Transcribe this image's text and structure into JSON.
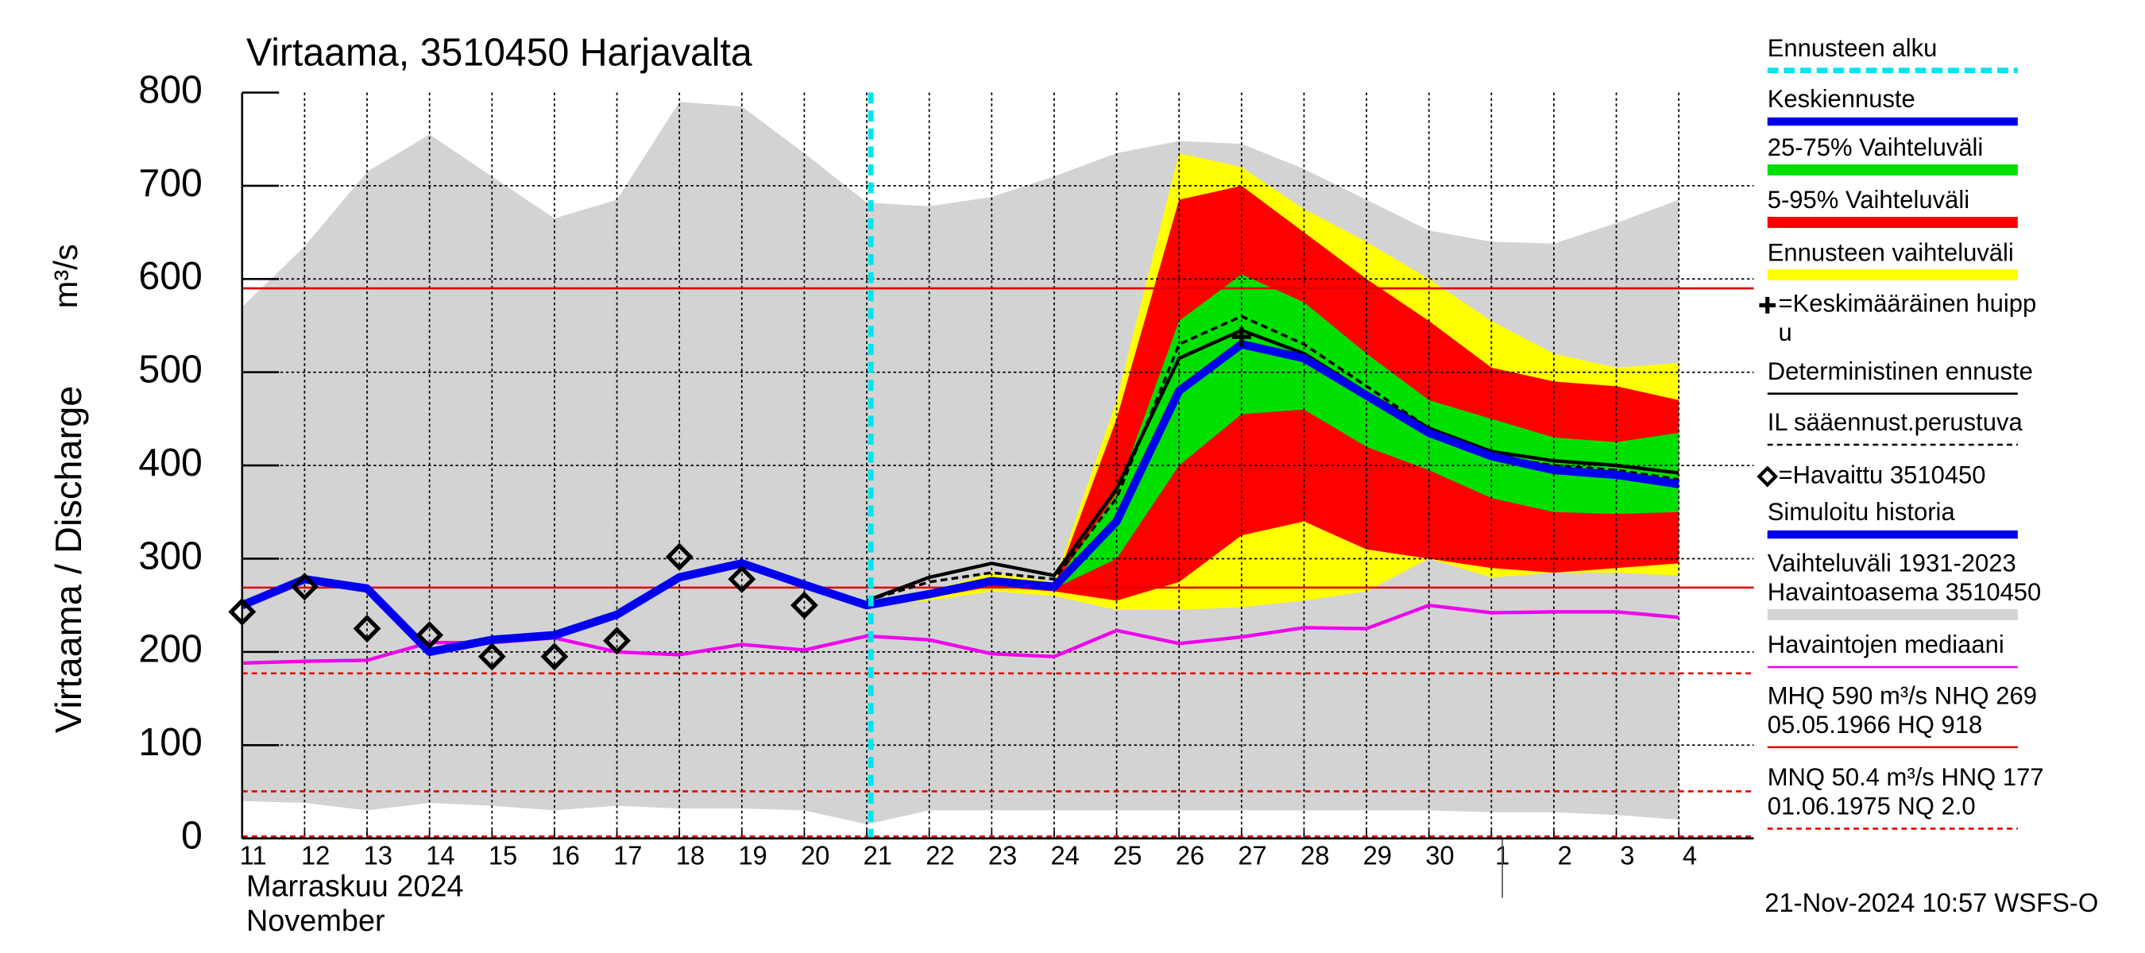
{
  "chart_data": {
    "type": "line",
    "title": "Virtaama, 3510450 Harjavalta",
    "ylabel": "Virtaama / Discharge",
    "yunit": "m³/s",
    "xlabel_lines": [
      "Marraskuu 2024",
      "November"
    ],
    "footer": "21-Nov-2024 10:57 WSFS-O",
    "categories": [
      "11",
      "12",
      "13",
      "14",
      "15",
      "16",
      "17",
      "18",
      "19",
      "20",
      "21",
      "22",
      "23",
      "24",
      "25",
      "26",
      "27",
      "28",
      "29",
      "30",
      "1",
      "2",
      "3",
      "4"
    ],
    "ylim": [
      0,
      800
    ],
    "yticks": [
      0,
      100,
      200,
      300,
      400,
      500,
      600,
      700,
      800
    ],
    "grid": true,
    "forecast_start_index": 10,
    "month_break_index": 20,
    "bands": [
      {
        "color": "#d3d3d3",
        "upper": [
          570,
          635,
          715,
          755,
          710,
          665,
          685,
          790,
          785,
          735,
          682,
          678,
          688,
          710,
          735,
          748,
          745,
          718,
          685,
          652,
          640,
          638,
          660,
          685
        ],
        "lower": [
          40,
          38,
          30,
          38,
          35,
          30,
          35,
          32,
          32,
          30,
          15,
          30,
          30,
          30,
          30,
          30,
          30,
          30,
          30,
          30,
          28,
          28,
          25,
          20
        ]
      },
      {
        "color": "#ffff00",
        "upper": [
          null,
          null,
          null,
          null,
          null,
          null,
          null,
          null,
          null,
          null,
          250,
          265,
          285,
          275,
          470,
          735,
          720,
          675,
          640,
          600,
          555,
          520,
          505,
          510
        ],
        "lower": [
          null,
          null,
          null,
          null,
          null,
          null,
          null,
          null,
          null,
          null,
          250,
          255,
          265,
          260,
          245,
          245,
          248,
          255,
          265,
          300,
          280,
          285,
          285,
          282
        ]
      },
      {
        "color": "#ff0000",
        "upper": [
          null,
          null,
          null,
          null,
          null,
          null,
          null,
          null,
          null,
          null,
          250,
          260,
          275,
          270,
          450,
          685,
          700,
          650,
          600,
          555,
          505,
          490,
          485,
          470
        ],
        "lower": [
          null,
          null,
          null,
          null,
          null,
          null,
          null,
          null,
          null,
          null,
          250,
          258,
          270,
          265,
          255,
          275,
          325,
          340,
          310,
          300,
          290,
          285,
          290,
          295
        ]
      },
      {
        "color": "#00e000",
        "upper": [
          null,
          null,
          null,
          null,
          null,
          null,
          null,
          null,
          null,
          null,
          250,
          262,
          278,
          272,
          370,
          555,
          605,
          575,
          520,
          470,
          450,
          430,
          425,
          435
        ],
        "lower": [
          null,
          null,
          null,
          null,
          null,
          null,
          null,
          null,
          null,
          null,
          250,
          260,
          273,
          268,
          300,
          400,
          455,
          460,
          420,
          395,
          365,
          350,
          348,
          350
        ]
      }
    ],
    "reference_lines": [
      {
        "value": 590,
        "color": "#e00000",
        "dash": false
      },
      {
        "value": 269,
        "color": "#e00000",
        "dash": false
      },
      {
        "value": 177,
        "color": "#e00000",
        "dash": true
      },
      {
        "value": 50.4,
        "color": "#e00000",
        "dash": true
      },
      {
        "value": 2.0,
        "color": "#e00000",
        "dash": true
      }
    ],
    "series": [
      {
        "color": "#ee00ee",
        "width": 2.5,
        "dash": false,
        "values": [
          188,
          190,
          191,
          210,
          210,
          215,
          200,
          197,
          208,
          202,
          217,
          213,
          198,
          195,
          223,
          209,
          216,
          226,
          225,
          250,
          242,
          243,
          243,
          237
        ]
      },
      {
        "color": "#000000",
        "width": 2.5,
        "dash": false,
        "values": [
          null,
          null,
          null,
          null,
          null,
          null,
          null,
          null,
          null,
          null,
          255,
          280,
          295,
          282,
          375,
          515,
          545,
          520,
          478,
          440,
          415,
          405,
          400,
          392
        ]
      },
      {
        "color": "#000000",
        "width": 2,
        "dash": true,
        "values": [
          null,
          null,
          null,
          null,
          null,
          null,
          null,
          null,
          null,
          null,
          255,
          275,
          285,
          278,
          365,
          530,
          560,
          530,
          485,
          440,
          410,
          400,
          395,
          385
        ]
      },
      {
        "color": "#0000ee",
        "width": 6,
        "dash": false,
        "values": [
          250,
          278,
          268,
          200,
          213,
          218,
          240,
          280,
          295,
          272,
          250,
          262,
          276,
          270,
          340,
          480,
          530,
          515,
          475,
          435,
          410,
          395,
          390,
          380
        ]
      }
    ],
    "observed": [
      243,
      270,
      225,
      218,
      195,
      195,
      212,
      302,
      278,
      250
    ],
    "mean_peak": {
      "index": 16,
      "value": 538
    },
    "legend": [
      {
        "label": [
          "Ennusteen alku"
        ],
        "color": "#00e5ee",
        "style": "dash"
      },
      {
        "label": [
          "Keskiennuste"
        ],
        "color": "#0000ee",
        "style": "line"
      },
      {
        "label": [
          "25-75% Vaihteluväli"
        ],
        "color": "#00e000",
        "style": "bar"
      },
      {
        "label": [
          "5-95% Vaihteluväli"
        ],
        "color": "#ff0000",
        "style": "bar"
      },
      {
        "label": [
          "Ennusteen vaihteluväli"
        ],
        "color": "#ffff00",
        "style": "bar"
      },
      {
        "label": [
          "=Keskimääräinen huipp",
          "u"
        ],
        "color": "#000000",
        "style": "plus"
      },
      {
        "label": [
          "Deterministinen ennuste"
        ],
        "color": "#000000",
        "style": "thin"
      },
      {
        "label": [
          "IL sääennust.perustuva"
        ],
        "color": "#000000",
        "style": "thindash"
      },
      {
        "label": [
          "=Havaittu 3510450"
        ],
        "color": "#000000",
        "style": "diamond"
      },
      {
        "label": [
          "Simuloitu historia"
        ],
        "color": "#0000ee",
        "style": "line"
      },
      {
        "label": [
          "Vaihteluväli 1931-2023",
          " Havaintoasema 3510450"
        ],
        "color": "#d3d3d3",
        "style": "bar"
      },
      {
        "label": [
          "Havaintojen mediaani"
        ],
        "color": "#ee00ee",
        "style": "thin"
      },
      {
        "label": [
          "MHQ  590 m³/s NHQ  269",
          "05.05.1966 HQ  918"
        ],
        "color": "#e00000",
        "style": "thin"
      },
      {
        "label": [
          "MNQ 50.4 m³/s HNQ  177",
          "01.06.1975 NQ  2.0"
        ],
        "color": "#e00000",
        "style": "thindash"
      }
    ]
  }
}
